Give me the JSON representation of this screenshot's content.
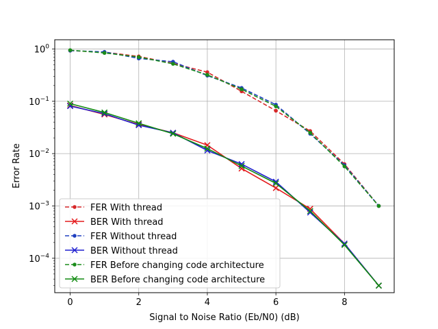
{
  "chart_data": {
    "type": "line",
    "xlabel": "Signal to Noise Ratio (Eb/N0) (dB)",
    "ylabel": "Error Rate",
    "xlim": [
      -0.45,
      9.45
    ],
    "ylim": [
      2.2e-05,
      1.5
    ],
    "yscale": "log",
    "grid": true,
    "legend_position": "lower-left",
    "x_ticks": [
      0,
      2,
      4,
      6,
      8
    ],
    "y_ticks": [
      {
        "value": 1,
        "base": "10",
        "exp": "0"
      },
      {
        "value": 0.1,
        "base": "10",
        "exp": "−1"
      },
      {
        "value": 0.01,
        "base": "10",
        "exp": "−2"
      },
      {
        "value": 0.001,
        "base": "10",
        "exp": "−3"
      },
      {
        "value": 0.0001,
        "base": "10",
        "exp": "−4"
      }
    ],
    "series": [
      {
        "name": "FER With thread",
        "color": "#d62728",
        "line": "dashed",
        "marker": "dot",
        "x": [
          0,
          1,
          2,
          3,
          4,
          5,
          6,
          7,
          8,
          9
        ],
        "values": [
          0.93,
          0.87,
          0.72,
          0.53,
          0.36,
          0.155,
          0.066,
          0.027,
          0.0063,
          0.001
        ]
      },
      {
        "name": "BER With thread",
        "color": "#e41a1c",
        "line": "solid",
        "marker": "x",
        "x": [
          0,
          1,
          2,
          3,
          4,
          5,
          6,
          7,
          8,
          9
        ],
        "values": [
          0.083,
          0.056,
          0.036,
          0.025,
          0.0145,
          0.0052,
          0.0022,
          0.00088,
          0.00019,
          3e-05
        ]
      },
      {
        "name": "FER Without thread",
        "color": "#1f3fbf",
        "line": "dashed",
        "marker": "dot",
        "x": [
          0,
          1,
          2,
          3,
          4,
          5,
          6,
          7,
          8,
          9
        ],
        "values": [
          0.93,
          0.88,
          0.66,
          0.57,
          0.31,
          0.18,
          0.086,
          0.024,
          0.006,
          0.001
        ]
      },
      {
        "name": "BER Without thread",
        "color": "#1f1fcf",
        "line": "solid",
        "marker": "x",
        "x": [
          0,
          1,
          2,
          3,
          4,
          5,
          6,
          7,
          8,
          9
        ],
        "values": [
          0.081,
          0.058,
          0.035,
          0.025,
          0.0115,
          0.0063,
          0.0029,
          0.00075,
          0.00019,
          3e-05
        ]
      },
      {
        "name": "FER Before changing code architecture",
        "color": "#1a8c1a",
        "line": "dashed",
        "marker": "dot",
        "x": [
          0,
          1,
          2,
          3,
          4,
          5,
          6,
          7,
          8,
          9
        ],
        "values": [
          0.95,
          0.84,
          0.7,
          0.52,
          0.32,
          0.17,
          0.08,
          0.025,
          0.0057,
          0.001
        ]
      },
      {
        "name": "BER Before changing code architecture",
        "color": "#108a10",
        "line": "solid",
        "marker": "x",
        "x": [
          0,
          1,
          2,
          3,
          4,
          5,
          6,
          7,
          8,
          9
        ],
        "values": [
          0.09,
          0.061,
          0.038,
          0.024,
          0.0125,
          0.0058,
          0.0027,
          0.0008,
          0.00018,
          3e-05
        ]
      }
    ]
  }
}
